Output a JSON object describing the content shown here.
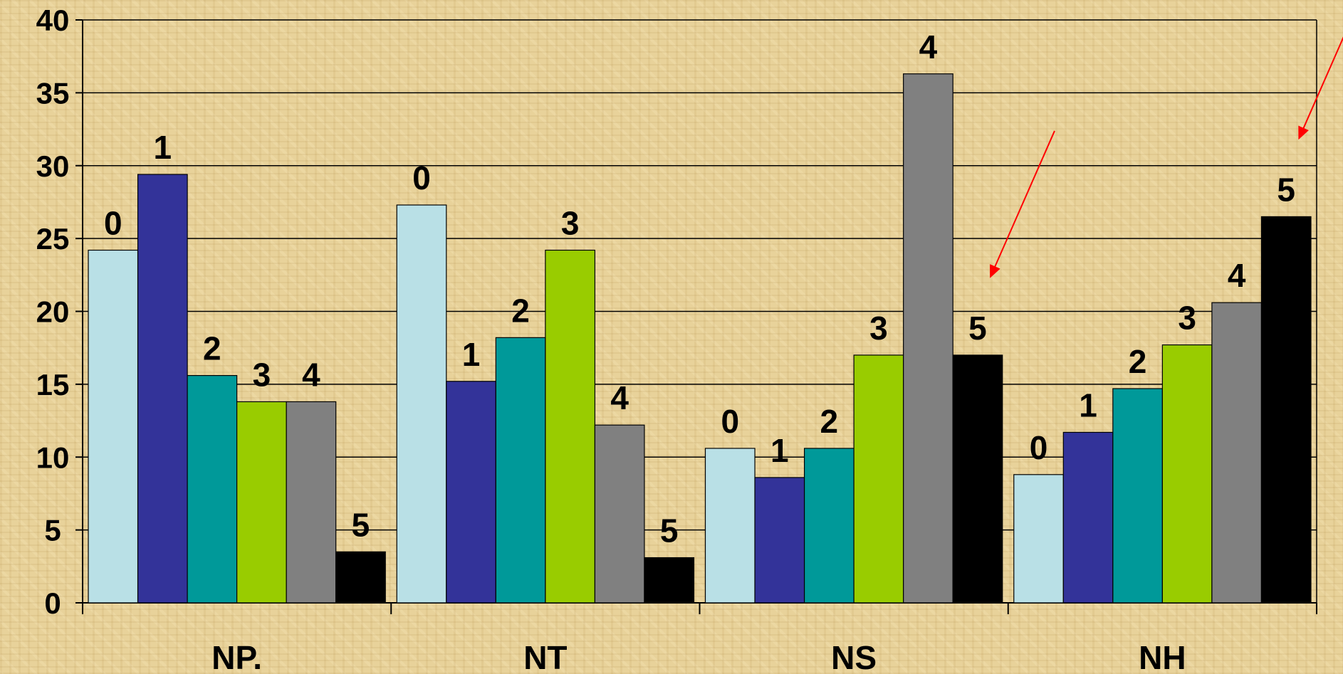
{
  "chart_data": {
    "type": "bar",
    "title": "",
    "xlabel": "",
    "ylabel": "",
    "ylim": [
      0,
      40
    ],
    "yticks": [
      "0",
      "5",
      "10",
      "15",
      "20",
      "25",
      "30",
      "35",
      "40"
    ],
    "grid": true,
    "legend": "none",
    "categories": [
      "NP.",
      "NT",
      "NS",
      "NH"
    ],
    "series": [
      {
        "name": "0",
        "color": "#b9e0e6",
        "values": [
          24.2,
          27.3,
          10.6,
          8.8
        ]
      },
      {
        "name": "1",
        "color": "#333399",
        "values": [
          29.4,
          15.2,
          8.6,
          11.7
        ]
      },
      {
        "name": "2",
        "color": "#009999",
        "values": [
          15.6,
          18.2,
          10.6,
          14.7
        ]
      },
      {
        "name": "3",
        "color": "#99cc00",
        "values": [
          13.8,
          24.2,
          17.0,
          17.7
        ]
      },
      {
        "name": "4",
        "color": "#808080",
        "values": [
          13.8,
          12.2,
          36.3,
          20.6
        ]
      },
      {
        "name": "5",
        "color": "#000000",
        "values": [
          3.5,
          3.1,
          17.0,
          26.5
        ]
      }
    ],
    "annotations": [
      {
        "type": "arrow",
        "color": "#ff0000",
        "points_to": {
          "category": "NS",
          "series": "5"
        }
      },
      {
        "type": "arrow",
        "color": "#ff0000",
        "points_to": {
          "category": "NH",
          "series": "5"
        }
      }
    ]
  }
}
